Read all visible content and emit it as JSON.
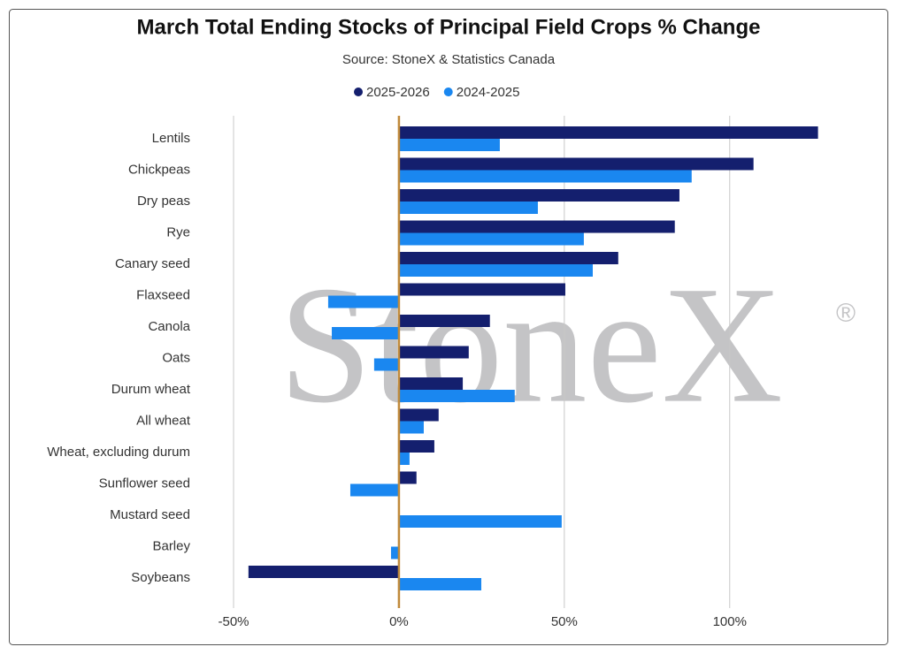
{
  "chart_data": {
    "type": "hbar",
    "title": "March Total Ending Stocks of Principal Field Crops % Change",
    "subtitle": "Source: StoneX & Statistics Canada",
    "watermark": "StoneX",
    "watermark_mark": "®",
    "categories": [
      "Lentils",
      "Chickpeas",
      "Dry peas",
      "Rye",
      "Canary seed",
      "Flaxseed",
      "Canola",
      "Oats",
      "Durum wheat",
      "All wheat",
      "Wheat, excluding durum",
      "Sunflower seed",
      "Mustard seed",
      "Barley",
      "Soybeans"
    ],
    "series": [
      {
        "name": "2025-2026",
        "color": "#141f6e",
        "values": [
          126.7,
          107.2,
          84.8,
          83.4,
          66.3,
          50.3,
          27.5,
          21.1,
          19.3,
          12.0,
          10.7,
          5.3,
          0,
          0,
          -45.5
        ]
      },
      {
        "name": "2024-2025",
        "color": "#1a87f0",
        "values": [
          30.5,
          88.5,
          42.0,
          55.9,
          58.6,
          -21.4,
          -20.3,
          -7.5,
          35.0,
          7.5,
          3.2,
          -14.7,
          49.2,
          -2.4,
          24.9
        ]
      }
    ],
    "xlim": [
      -50,
      145
    ],
    "xticks": [
      {
        "value": -50,
        "label": "-50%"
      },
      {
        "value": 0,
        "label": "0%"
      },
      {
        "value": 50,
        "label": "50%"
      },
      {
        "value": 100,
        "label": "100%"
      }
    ],
    "grid": true,
    "zero_line_color": "#c08a3a",
    "legend": "top"
  }
}
